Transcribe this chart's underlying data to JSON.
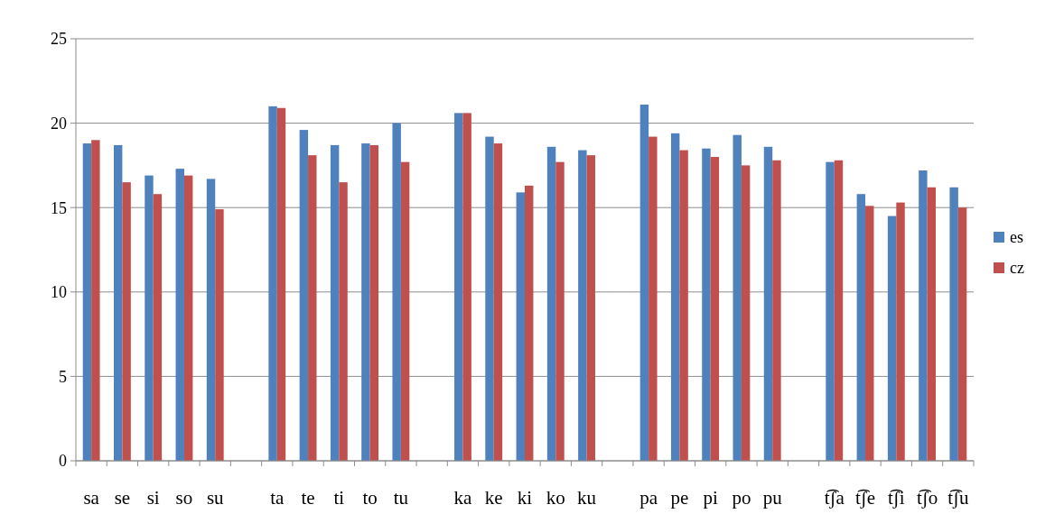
{
  "chart_data": {
    "type": "bar",
    "categories": [
      "sa",
      "se",
      "si",
      "so",
      "su",
      null,
      "ta",
      "te",
      "ti",
      "to",
      "tu",
      null,
      "ka",
      "ke",
      "ki",
      "ko",
      "ku",
      null,
      "pa",
      "pe",
      "pi",
      "po",
      "pu",
      null,
      "t͡ʃa",
      "t͡ʃe",
      "t͡ʃi",
      "t͡ʃo",
      "t͡ʃu"
    ],
    "series": [
      {
        "name": "es",
        "color": "#4f81bd",
        "values": [
          18.8,
          18.7,
          16.9,
          17.3,
          16.7,
          null,
          21.0,
          19.6,
          18.7,
          18.8,
          20.0,
          null,
          20.6,
          19.2,
          15.9,
          18.6,
          18.4,
          null,
          21.1,
          19.4,
          18.5,
          19.3,
          18.6,
          null,
          17.7,
          15.8,
          14.5,
          17.2,
          16.2
        ]
      },
      {
        "name": "cz",
        "color": "#c0504d",
        "values": [
          19.0,
          16.5,
          15.8,
          16.9,
          14.9,
          null,
          20.9,
          18.1,
          16.5,
          18.7,
          17.7,
          null,
          20.6,
          18.8,
          16.3,
          17.7,
          18.1,
          null,
          19.2,
          18.4,
          18.0,
          17.5,
          17.8,
          null,
          17.8,
          15.1,
          15.3,
          16.2,
          15.0
        ]
      }
    ],
    "ylim": [
      0,
      25
    ],
    "yticks": [
      0,
      5,
      10,
      15,
      20,
      25
    ],
    "grid": "y",
    "legend": "right"
  }
}
